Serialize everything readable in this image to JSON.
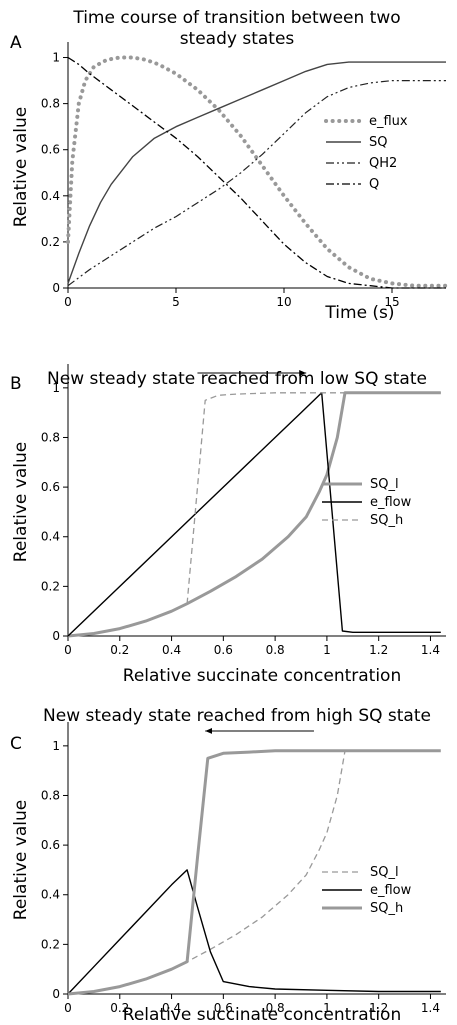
{
  "chart_data": [
    {
      "panel": "A",
      "type": "line",
      "title": [
        "Time course of transition between two",
        "steady states"
      ],
      "xlabel": "Time (s)",
      "ylabel": "Relative value",
      "xlim": [
        0,
        17.5
      ],
      "ylim": [
        0,
        1.05
      ],
      "xticks": [
        0,
        5,
        10,
        15
      ],
      "xtick_labels": [
        "0",
        "5",
        "10",
        "15"
      ],
      "yticks": [
        0,
        0.2,
        0.4,
        0.6,
        0.8,
        1
      ],
      "ytick_labels": [
        "0",
        "0.2",
        "0.4",
        "0.6",
        "0.8",
        "1"
      ],
      "legend_position": "right",
      "series": [
        {
          "name": "e_flux",
          "color": "#999999",
          "style": "dotted-thick",
          "x": [
            0,
            0.2,
            0.5,
            0.8,
            1.2,
            1.8,
            2.4,
            3,
            3.6,
            4.2,
            5,
            6,
            7,
            8,
            9,
            10,
            11,
            12,
            13,
            14,
            15,
            16,
            17.5
          ],
          "y": [
            0.2,
            0.55,
            0.8,
            0.9,
            0.96,
            0.99,
            1.0,
            1.0,
            0.99,
            0.97,
            0.93,
            0.86,
            0.77,
            0.66,
            0.53,
            0.4,
            0.28,
            0.17,
            0.09,
            0.04,
            0.02,
            0.01,
            0.01
          ]
        },
        {
          "name": "SQ",
          "color": "#444444",
          "style": "solid",
          "x": [
            0,
            0.5,
            1,
            1.5,
            2,
            3,
            4,
            5,
            6,
            7,
            8,
            9,
            10,
            11,
            12,
            13,
            14,
            15,
            16,
            17.5
          ],
          "y": [
            0.02,
            0.15,
            0.27,
            0.37,
            0.45,
            0.57,
            0.65,
            0.7,
            0.74,
            0.78,
            0.82,
            0.86,
            0.9,
            0.94,
            0.97,
            0.98,
            0.98,
            0.98,
            0.98,
            0.98
          ]
        },
        {
          "name": "QH2",
          "color": "#222222",
          "style": "dashdotdot",
          "x": [
            0,
            1,
            2,
            3,
            4,
            5,
            6,
            7,
            8,
            9,
            10,
            11,
            12,
            13,
            14,
            15,
            16,
            17.5
          ],
          "y": [
            0.01,
            0.08,
            0.14,
            0.2,
            0.26,
            0.31,
            0.37,
            0.43,
            0.5,
            0.58,
            0.67,
            0.76,
            0.83,
            0.87,
            0.89,
            0.9,
            0.9,
            0.9
          ]
        },
        {
          "name": "Q",
          "color": "#000000",
          "style": "dashdot",
          "x": [
            0,
            0.5,
            1,
            2,
            3,
            4,
            5,
            6,
            7,
            8,
            9,
            10,
            11,
            12,
            13,
            14,
            15,
            16,
            17.5
          ],
          "y": [
            1.0,
            0.97,
            0.93,
            0.86,
            0.79,
            0.72,
            0.65,
            0.57,
            0.48,
            0.39,
            0.29,
            0.19,
            0.11,
            0.05,
            0.02,
            0.01,
            0.0,
            0.0,
            0.0
          ]
        }
      ]
    },
    {
      "panel": "B",
      "type": "line",
      "title": [
        "New steady state reached from low SQ state"
      ],
      "xlabel": "Relative succinate concentration",
      "ylabel": "Relative value",
      "xlim": [
        0,
        1.46
      ],
      "ylim": [
        0,
        1.08
      ],
      "xticks": [
        0,
        0.2,
        0.4,
        0.6,
        0.8,
        1,
        1.2,
        1.4
      ],
      "xtick_labels": [
        "0",
        "0.2",
        "0.4",
        "0.6",
        "0.8",
        "1",
        "1.2",
        "1.4"
      ],
      "yticks": [
        0,
        0.2,
        0.4,
        0.6,
        0.8,
        1
      ],
      "ytick_labels": [
        "0",
        "0.2",
        "0.4",
        "0.6",
        "0.8",
        "1"
      ],
      "legend_position": "right",
      "arrow": {
        "from": [
          0.5,
          1.06
        ],
        "to": [
          0.92,
          1.06
        ],
        "direction": "right"
      },
      "series": [
        {
          "name": "SQ_l",
          "color": "#999999",
          "style": "solid-thick",
          "x": [
            0,
            0.1,
            0.2,
            0.3,
            0.4,
            0.46,
            0.55,
            0.65,
            0.75,
            0.85,
            0.92,
            0.97,
            1.0,
            1.04,
            1.07,
            1.2,
            1.3,
            1.44
          ],
          "y": [
            0.0,
            0.01,
            0.03,
            0.06,
            0.1,
            0.13,
            0.18,
            0.24,
            0.31,
            0.4,
            0.48,
            0.58,
            0.65,
            0.8,
            0.98,
            0.98,
            0.98,
            0.98
          ]
        },
        {
          "name": "e_flow",
          "color": "#000000",
          "style": "solid",
          "x": [
            0,
            0.2,
            0.4,
            0.6,
            0.8,
            0.9,
            0.98,
            1.06,
            1.1,
            1.2,
            1.3,
            1.44
          ],
          "y": [
            0.0,
            0.2,
            0.4,
            0.6,
            0.8,
            0.9,
            0.98,
            0.02,
            0.015,
            0.015,
            0.015,
            0.015
          ]
        },
        {
          "name": "SQ_h",
          "color": "#999999",
          "style": "dashed",
          "x": [
            0.46,
            0.5,
            0.53,
            0.58,
            0.65,
            0.8,
            1.0,
            1.2,
            1.44
          ],
          "y": [
            0.13,
            0.6,
            0.95,
            0.97,
            0.975,
            0.98,
            0.98,
            0.98,
            0.98
          ]
        }
      ]
    },
    {
      "panel": "C",
      "type": "line",
      "title": [
        "New steady state reached from high SQ state"
      ],
      "xlabel": "Relative succinate concentration",
      "ylabel": "Relative value",
      "xlim": [
        0,
        1.46
      ],
      "ylim": [
        0,
        1.08
      ],
      "xticks": [
        0,
        0.2,
        0.4,
        0.6,
        0.8,
        1,
        1.2,
        1.4
      ],
      "xtick_labels": [
        "0",
        "0.2",
        "0.4",
        "0.6",
        "0.8",
        "1",
        "1.2",
        "1.4"
      ],
      "yticks": [
        0,
        0.2,
        0.4,
        0.6,
        0.8,
        1
      ],
      "ytick_labels": [
        "0",
        "0.2",
        "0.4",
        "0.6",
        "0.8",
        "1"
      ],
      "legend_position": "lower right",
      "arrow": {
        "from": [
          0.95,
          1.06
        ],
        "to": [
          0.53,
          1.06
        ],
        "direction": "left"
      },
      "series": [
        {
          "name": "SQ_l",
          "color": "#999999",
          "style": "dashed",
          "x": [
            0,
            0.1,
            0.2,
            0.3,
            0.4,
            0.46,
            0.55,
            0.65,
            0.75,
            0.85,
            0.92,
            0.97,
            1.0,
            1.04,
            1.07
          ],
          "y": [
            0.0,
            0.01,
            0.03,
            0.06,
            0.1,
            0.13,
            0.18,
            0.24,
            0.31,
            0.4,
            0.48,
            0.58,
            0.65,
            0.8,
            0.98
          ]
        },
        {
          "name": "e_flow",
          "color": "#000000",
          "style": "solid",
          "x": [
            0,
            0.1,
            0.2,
            0.3,
            0.4,
            0.46,
            0.5,
            0.55,
            0.6,
            0.7,
            0.8,
            1.0,
            1.2,
            1.44
          ],
          "y": [
            0.0,
            0.11,
            0.22,
            0.33,
            0.44,
            0.5,
            0.35,
            0.17,
            0.05,
            0.03,
            0.02,
            0.015,
            0.01,
            0.01
          ]
        },
        {
          "name": "SQ_h",
          "color": "#999999",
          "style": "solid-thick",
          "x": [
            0,
            0.1,
            0.2,
            0.3,
            0.4,
            0.46,
            0.5,
            0.54,
            0.6,
            0.7,
            0.8,
            1.0,
            1.2,
            1.44
          ],
          "y": [
            0.0,
            0.01,
            0.03,
            0.06,
            0.1,
            0.13,
            0.55,
            0.95,
            0.97,
            0.975,
            0.98,
            0.98,
            0.98,
            0.98
          ]
        }
      ]
    }
  ]
}
